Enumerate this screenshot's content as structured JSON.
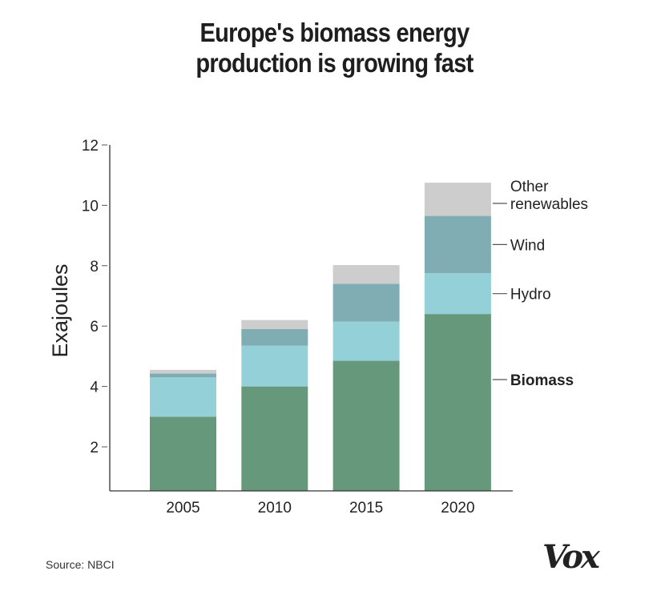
{
  "title_lines": [
    "Europe's biomass energy",
    "production is growing fast"
  ],
  "source": "Source: NBCI",
  "logo": "Vox",
  "chart_data": {
    "type": "bar",
    "stacked": true,
    "title": "Europe's biomass energy production is growing fast",
    "xlabel": "",
    "ylabel": "Exajoules",
    "ylim": [
      0.5,
      12
    ],
    "yticks": [
      2,
      4,
      6,
      8,
      10,
      12
    ],
    "grid": false,
    "legend": "right (labels with leader lines beside last bar)",
    "categories": [
      "2005",
      "2010",
      "2015",
      "2020"
    ],
    "series": [
      {
        "name": "Biomass",
        "color": "#66997b",
        "values": [
          3.0,
          4.0,
          4.85,
          6.4
        ],
        "label_bold": true
      },
      {
        "name": "Hydro",
        "color": "#93d0d8",
        "values": [
          1.3,
          1.35,
          1.3,
          1.35
        ],
        "label_bold": false
      },
      {
        "name": "Wind",
        "color": "#80adb3",
        "values": [
          0.13,
          0.55,
          1.25,
          1.9
        ],
        "label_bold": false
      },
      {
        "name": "Other renewables",
        "color": "#cdcdcd",
        "values": [
          0.12,
          0.3,
          0.62,
          1.1
        ],
        "label_bold": false
      }
    ],
    "legend_labels": [
      {
        "series": "Other renewables",
        "lines": [
          "Other",
          "renewables"
        ]
      },
      {
        "series": "Wind",
        "lines": [
          "Wind"
        ]
      },
      {
        "series": "Hydro",
        "lines": [
          "Hydro"
        ]
      },
      {
        "series": "Biomass",
        "lines": [
          "Biomass"
        ]
      }
    ],
    "colors": {
      "axis": "#333333",
      "text": "#222222"
    }
  }
}
